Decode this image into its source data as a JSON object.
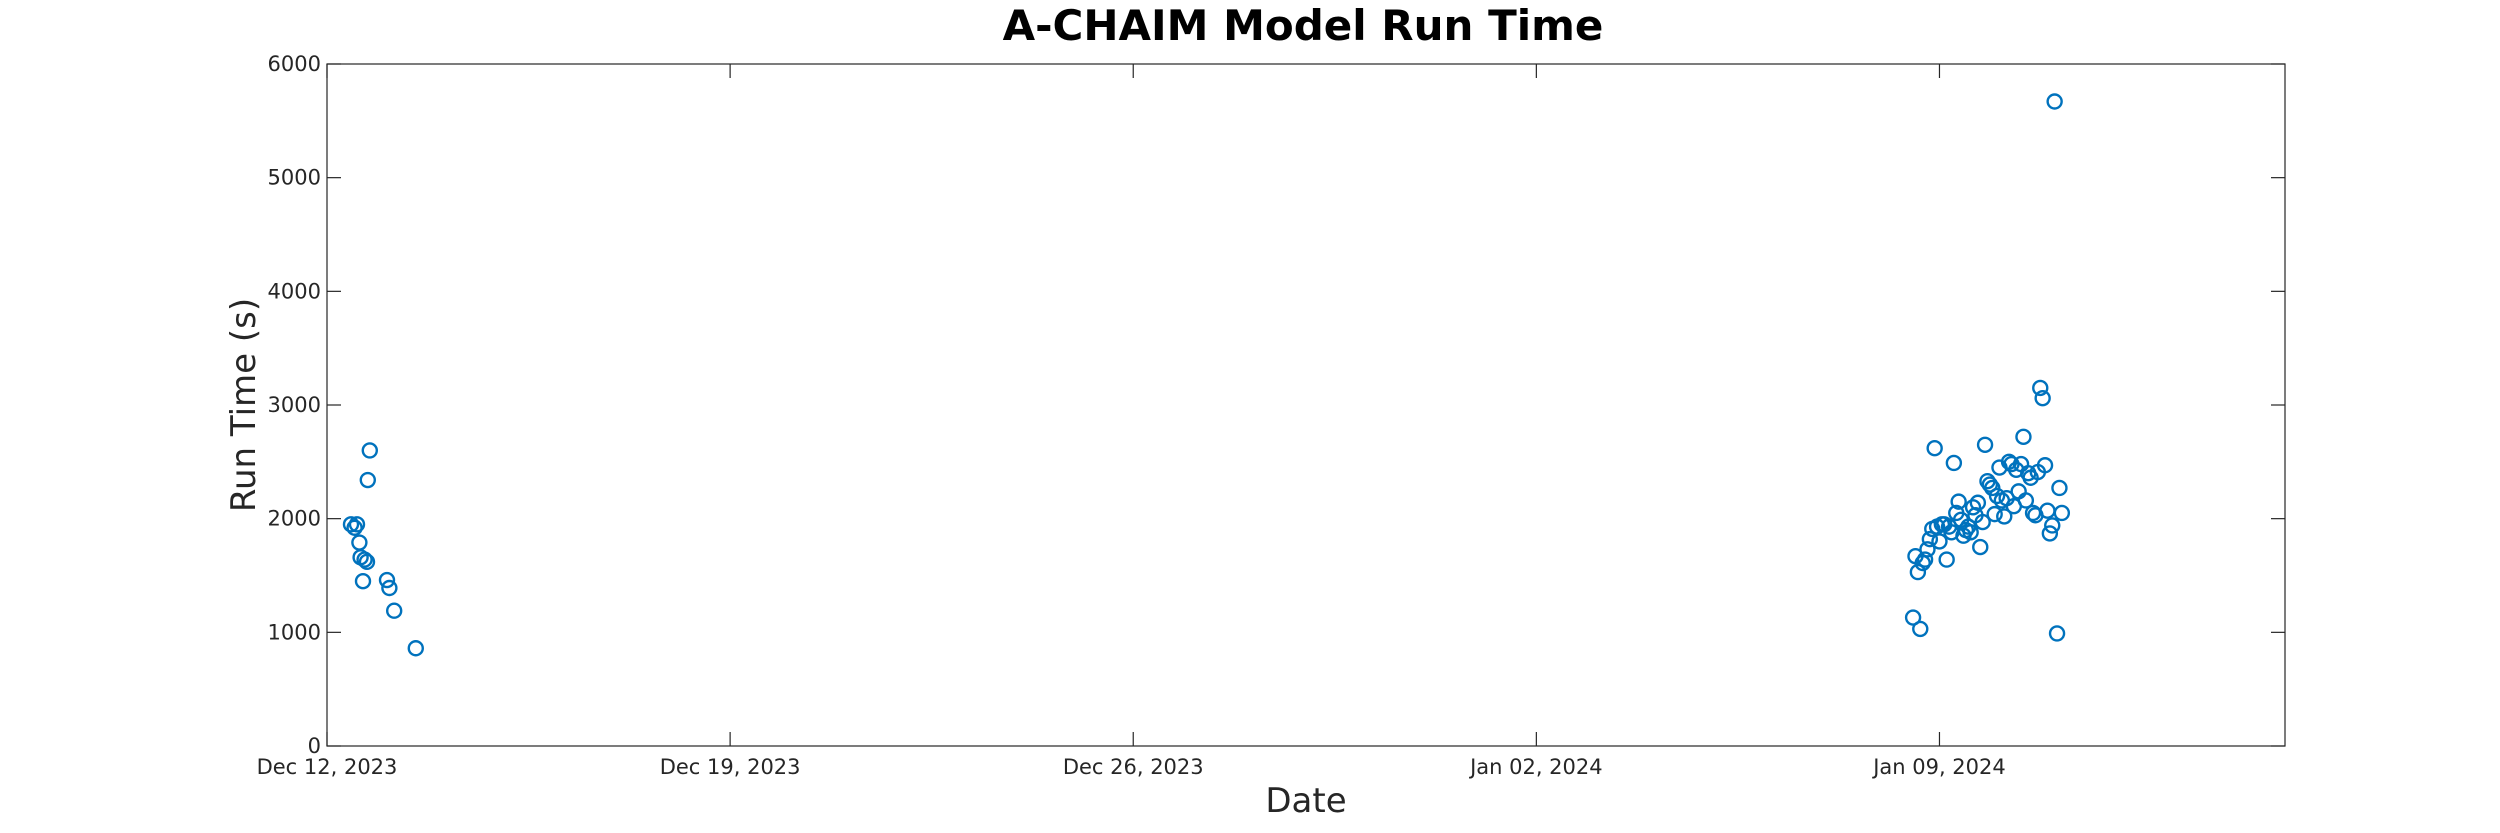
{
  "chart_data": {
    "type": "scatter",
    "title": "A-CHAIM Model Run Time",
    "xlabel": "Date",
    "ylabel": "Run Time (s)",
    "xlim": [
      "2023-12-12",
      "2024-01-15"
    ],
    "ylim": [
      0,
      6000
    ],
    "x_ticks": [
      "Dec 12, 2023",
      "Dec 19, 2023",
      "Dec 26, 2023",
      "Jan 02, 2024",
      "Jan 09, 2024"
    ],
    "y_ticks": [
      "0",
      "1000",
      "2000",
      "3000",
      "4000",
      "5000",
      "6000"
    ],
    "grid": false,
    "marker": "open-circle",
    "color": "#0072BD",
    "series": [
      {
        "points": [
          [
            "2023-12-12 10:00",
            1950
          ],
          [
            "2023-12-12 11:30",
            1920
          ],
          [
            "2023-12-12 12:30",
            1950
          ],
          [
            "2023-12-12 13:30",
            1790
          ],
          [
            "2023-12-12 14:00",
            1660
          ],
          [
            "2023-12-12 15:00",
            1450
          ],
          [
            "2023-12-12 15:40",
            1640
          ],
          [
            "2023-12-12 16:40",
            1620
          ],
          [
            "2023-12-12 17:00",
            2340
          ],
          [
            "2023-12-12 17:50",
            2600
          ],
          [
            "2023-12-13 01:00",
            1460
          ],
          [
            "2023-12-13 02:00",
            1390
          ],
          [
            "2023-12-13 04:00",
            1190
          ],
          [
            "2023-12-13 13:00",
            860
          ],
          [
            "2024-01-08 13:00",
            1130
          ],
          [
            "2024-01-08 14:00",
            1670
          ],
          [
            "2024-01-08 15:00",
            1530
          ],
          [
            "2024-01-08 16:00",
            1030
          ],
          [
            "2024-01-08 17:00",
            1610
          ],
          [
            "2024-01-08 18:00",
            1640
          ],
          [
            "2024-01-08 19:00",
            1730
          ],
          [
            "2024-01-08 20:00",
            1820
          ],
          [
            "2024-01-08 21:00",
            1910
          ],
          [
            "2024-01-08 22:00",
            2620
          ],
          [
            "2024-01-08 23:00",
            1930
          ],
          [
            "2024-01-09 00:00",
            1800
          ],
          [
            "2024-01-09 01:00",
            1950
          ],
          [
            "2024-01-09 02:00",
            1950
          ],
          [
            "2024-01-09 03:00",
            1640
          ],
          [
            "2024-01-09 04:00",
            1930
          ],
          [
            "2024-01-09 05:00",
            1880
          ],
          [
            "2024-01-09 06:00",
            2490
          ],
          [
            "2024-01-09 07:00",
            2050
          ],
          [
            "2024-01-09 08:00",
            2150
          ],
          [
            "2024-01-09 09:00",
            1990
          ],
          [
            "2024-01-09 10:00",
            1850
          ],
          [
            "2024-01-09 11:00",
            1900
          ],
          [
            "2024-01-09 12:00",
            1930
          ],
          [
            "2024-01-09 13:00",
            1880
          ],
          [
            "2024-01-09 14:00",
            2100
          ],
          [
            "2024-01-09 15:00",
            2030
          ],
          [
            "2024-01-09 16:00",
            2140
          ],
          [
            "2024-01-09 17:00",
            1750
          ],
          [
            "2024-01-09 18:00",
            1970
          ],
          [
            "2024-01-09 19:00",
            2650
          ],
          [
            "2024-01-09 20:00",
            2330
          ],
          [
            "2024-01-09 21:00",
            2300
          ],
          [
            "2024-01-09 22:00",
            2270
          ],
          [
            "2024-01-09 23:00",
            2040
          ],
          [
            "2024-01-10 00:00",
            2200
          ],
          [
            "2024-01-10 01:00",
            2450
          ],
          [
            "2024-01-10 02:00",
            2160
          ],
          [
            "2024-01-10 03:00",
            2020
          ],
          [
            "2024-01-10 04:00",
            2180
          ],
          [
            "2024-01-10 05:00",
            2500
          ],
          [
            "2024-01-10 06:00",
            2480
          ],
          [
            "2024-01-10 07:00",
            2110
          ],
          [
            "2024-01-10 08:00",
            2430
          ],
          [
            "2024-01-10 09:00",
            2240
          ],
          [
            "2024-01-10 10:00",
            2480
          ],
          [
            "2024-01-10 11:00",
            2720
          ],
          [
            "2024-01-10 12:00",
            2160
          ],
          [
            "2024-01-10 13:00",
            2400
          ],
          [
            "2024-01-10 14:00",
            2360
          ],
          [
            "2024-01-10 15:00",
            2050
          ],
          [
            "2024-01-10 16:00",
            2030
          ],
          [
            "2024-01-10 17:00",
            2410
          ],
          [
            "2024-01-10 18:00",
            3150
          ],
          [
            "2024-01-10 19:00",
            3060
          ],
          [
            "2024-01-10 20:00",
            2470
          ],
          [
            "2024-01-10 21:00",
            2070
          ],
          [
            "2024-01-10 22:00",
            1870
          ],
          [
            "2024-01-10 23:00",
            1940
          ],
          [
            "2024-01-11 00:00",
            5670
          ],
          [
            "2024-01-11 01:00",
            990
          ],
          [
            "2024-01-11 02:00",
            2270
          ],
          [
            "2024-01-11 03:00",
            2050
          ]
        ]
      }
    ]
  }
}
